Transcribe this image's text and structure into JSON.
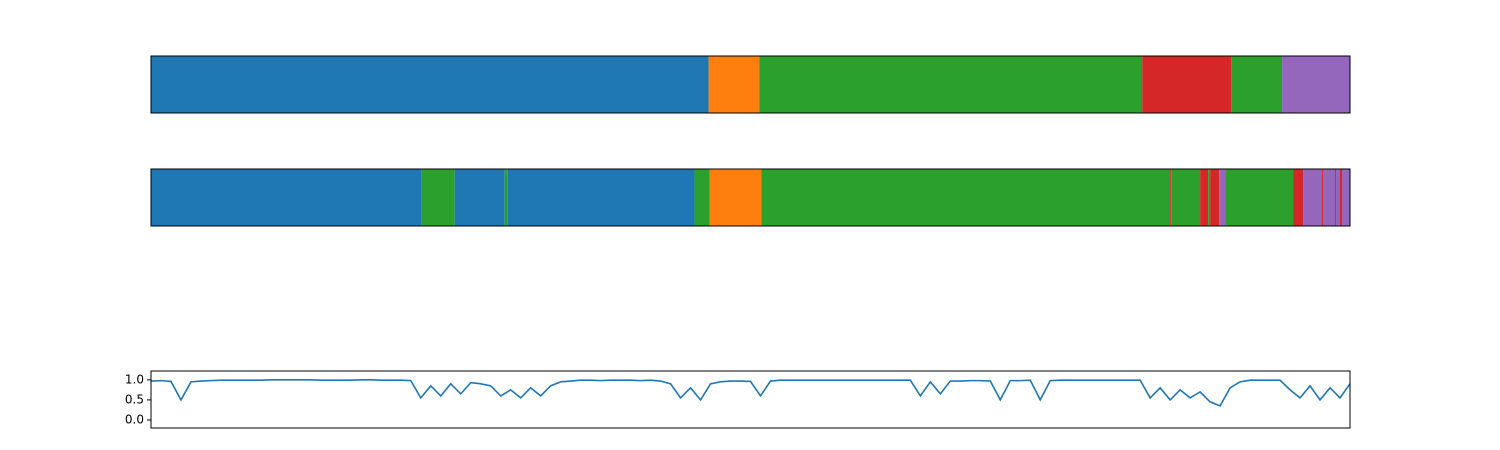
{
  "chart_data": [
    {
      "type": "strip",
      "xlim": [
        0,
        1200
      ],
      "segments": [
        {
          "start": 0,
          "end": 558,
          "color": "#1f77b4"
        },
        {
          "start": 558,
          "end": 609,
          "color": "#ff7f0e"
        },
        {
          "start": 609,
          "end": 992,
          "color": "#2ca02c"
        },
        {
          "start": 992,
          "end": 1081,
          "color": "#d62728"
        },
        {
          "start": 1081,
          "end": 1132,
          "color": "#2ca02c"
        },
        {
          "start": 1132,
          "end": 1200,
          "color": "#9467bd"
        }
      ]
    },
    {
      "type": "strip",
      "xlim": [
        0,
        1200
      ],
      "segments": [
        {
          "start": 0,
          "end": 271,
          "color": "#1f77b4"
        },
        {
          "start": 271,
          "end": 304,
          "color": "#2ca02c"
        },
        {
          "start": 304,
          "end": 354,
          "color": "#1f77b4"
        },
        {
          "start": 354,
          "end": 357,
          "color": "#2ca02c"
        },
        {
          "start": 357,
          "end": 544,
          "color": "#1f77b4"
        },
        {
          "start": 544,
          "end": 559,
          "color": "#2ca02c"
        },
        {
          "start": 559,
          "end": 611,
          "color": "#ff7f0e"
        },
        {
          "start": 611,
          "end": 1020,
          "color": "#2ca02c"
        },
        {
          "start": 1020,
          "end": 1021,
          "color": "#d62728"
        },
        {
          "start": 1021,
          "end": 1050,
          "color": "#2ca02c"
        },
        {
          "start": 1050,
          "end": 1058,
          "color": "#d62728"
        },
        {
          "start": 1058,
          "end": 1060,
          "color": "#2ca02c"
        },
        {
          "start": 1060,
          "end": 1069,
          "color": "#d62728"
        },
        {
          "start": 1069,
          "end": 1075,
          "color": "#9467bd"
        },
        {
          "start": 1075,
          "end": 1143,
          "color": "#2ca02c"
        },
        {
          "start": 1143,
          "end": 1153,
          "color": "#d62728"
        },
        {
          "start": 1153,
          "end": 1172,
          "color": "#9467bd"
        },
        {
          "start": 1172,
          "end": 1173,
          "color": "#d62728"
        },
        {
          "start": 1173,
          "end": 1185,
          "color": "#9467bd"
        },
        {
          "start": 1185,
          "end": 1186,
          "color": "#d62728"
        },
        {
          "start": 1186,
          "end": 1190,
          "color": "#9467bd"
        },
        {
          "start": 1190,
          "end": 1192,
          "color": "#d62728"
        },
        {
          "start": 1192,
          "end": 1200,
          "color": "#9467bd"
        }
      ]
    },
    {
      "type": "line",
      "xlim": [
        0,
        1200
      ],
      "ylim": [
        -0.2,
        1.22
      ],
      "yticks": [
        {
          "value": 0,
          "label": "0.0"
        },
        0.5,
        {
          "value": 1,
          "label": "1.0"
        }
      ],
      "color": "#1f77b4",
      "x": [
        0,
        10,
        20,
        30,
        40,
        50,
        60,
        70,
        80,
        90,
        100,
        110,
        120,
        130,
        140,
        150,
        160,
        170,
        180,
        190,
        200,
        210,
        220,
        230,
        240,
        250,
        260,
        270,
        280,
        290,
        300,
        310,
        320,
        330,
        340,
        350,
        360,
        370,
        380,
        390,
        400,
        410,
        420,
        430,
        440,
        450,
        460,
        470,
        480,
        490,
        500,
        510,
        520,
        530,
        540,
        550,
        560,
        570,
        580,
        590,
        600,
        610,
        620,
        630,
        640,
        650,
        660,
        670,
        680,
        690,
        700,
        710,
        720,
        730,
        740,
        750,
        760,
        770,
        780,
        790,
        800,
        810,
        820,
        830,
        840,
        850,
        860,
        870,
        880,
        890,
        900,
        910,
        920,
        930,
        940,
        950,
        960,
        970,
        980,
        990,
        1000,
        1010,
        1020,
        1030,
        1040,
        1050,
        1060,
        1070,
        1080,
        1090,
        1100,
        1110,
        1120,
        1130,
        1140,
        1150,
        1160,
        1170,
        1180,
        1190,
        1200
      ],
      "values": [
        0.97,
        0.98,
        0.96,
        0.5,
        0.95,
        0.97,
        0.98,
        0.99,
        0.99,
        0.99,
        0.99,
        0.99,
        1.0,
        1.0,
        1.0,
        1.0,
        1.0,
        0.99,
        0.99,
        0.99,
        0.99,
        1.0,
        1.0,
        0.99,
        0.99,
        0.99,
        0.98,
        0.55,
        0.85,
        0.6,
        0.9,
        0.65,
        0.93,
        0.9,
        0.85,
        0.6,
        0.75,
        0.55,
        0.8,
        0.6,
        0.85,
        0.95,
        0.97,
        0.99,
        0.99,
        0.98,
        0.99,
        0.99,
        0.99,
        0.98,
        0.99,
        0.97,
        0.9,
        0.55,
        0.8,
        0.5,
        0.9,
        0.95,
        0.97,
        0.97,
        0.96,
        0.6,
        0.97,
        0.99,
        0.99,
        0.99,
        0.99,
        0.99,
        0.99,
        0.99,
        0.99,
        0.99,
        0.99,
        0.99,
        0.99,
        0.99,
        0.99,
        0.6,
        0.95,
        0.65,
        0.97,
        0.97,
        0.98,
        0.98,
        0.97,
        0.5,
        0.98,
        0.98,
        0.99,
        0.5,
        0.98,
        0.99,
        0.99,
        0.99,
        0.99,
        0.99,
        0.99,
        0.99,
        0.99,
        0.99,
        0.55,
        0.8,
        0.5,
        0.75,
        0.55,
        0.7,
        0.45,
        0.35,
        0.8,
        0.95,
        0.99,
        0.99,
        0.99,
        0.99,
        0.75,
        0.55,
        0.85,
        0.5,
        0.8,
        0.55,
        0.9
      ]
    }
  ]
}
